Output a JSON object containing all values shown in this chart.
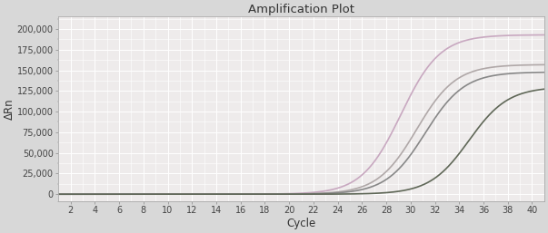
{
  "title": "Amplification Plot",
  "xlabel": "Cycle",
  "ylabel": "ΔRn",
  "xlim": [
    1,
    41
  ],
  "ylim": [
    -8000,
    215000
  ],
  "xticks": [
    2,
    4,
    6,
    8,
    10,
    12,
    14,
    16,
    18,
    20,
    22,
    24,
    26,
    28,
    30,
    32,
    34,
    36,
    38,
    40
  ],
  "yticks": [
    0,
    25000,
    50000,
    75000,
    100000,
    125000,
    150000,
    175000,
    200000
  ],
  "ytick_labels": [
    "0",
    "25,000",
    "50,000",
    "75,000",
    "100,000",
    "125,000",
    "150,000",
    "175,000",
    "200,000"
  ],
  "background_color": "#d8d8d8",
  "plot_bg_color": "#eeebeb",
  "grid_color": "#ffffff",
  "curves": [
    {
      "L": 193000,
      "x0": 29.2,
      "k": 0.62,
      "color": "#c8a8c0",
      "lw": 1.2
    },
    {
      "L": 157000,
      "x0": 30.5,
      "k": 0.62,
      "color": "#b0a8a8",
      "lw": 1.2
    },
    {
      "L": 148000,
      "x0": 31.2,
      "k": 0.62,
      "color": "#888888",
      "lw": 1.2
    },
    {
      "L": 130000,
      "x0": 34.8,
      "k": 0.62,
      "color": "#606858",
      "lw": 1.2
    }
  ],
  "title_fontsize": 9.5,
  "axis_fontsize": 8.5,
  "tick_fontsize": 7.0
}
